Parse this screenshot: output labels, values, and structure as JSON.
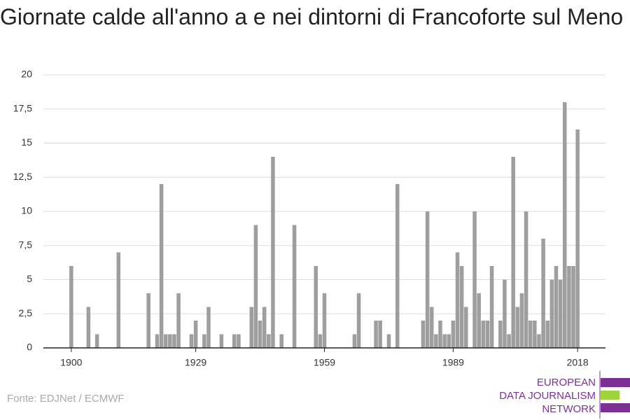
{
  "chart_data": {
    "type": "bar",
    "title": "Giornate calde all'anno a e nei dintorni di Francoforte sul Meno",
    "source": "Fonte: EDJNet / ECMWF",
    "logo": [
      "EUROPEAN",
      "DATA JOURNALISM",
      "NETWORK"
    ],
    "color": "#9e9e9e",
    "x": [
      1900,
      1901,
      1902,
      1903,
      1904,
      1905,
      1906,
      1907,
      1908,
      1909,
      1910,
      1911,
      1912,
      1913,
      1914,
      1915,
      1916,
      1917,
      1918,
      1919,
      1920,
      1921,
      1922,
      1923,
      1924,
      1925,
      1926,
      1927,
      1928,
      1929,
      1930,
      1931,
      1932,
      1933,
      1934,
      1935,
      1936,
      1937,
      1938,
      1939,
      1940,
      1941,
      1942,
      1943,
      1944,
      1945,
      1946,
      1947,
      1948,
      1949,
      1950,
      1951,
      1952,
      1953,
      1954,
      1955,
      1956,
      1957,
      1958,
      1959,
      1960,
      1961,
      1962,
      1963,
      1964,
      1965,
      1966,
      1967,
      1968,
      1969,
      1970,
      1971,
      1972,
      1973,
      1974,
      1975,
      1976,
      1977,
      1978,
      1979,
      1980,
      1981,
      1982,
      1983,
      1984,
      1985,
      1986,
      1987,
      1988,
      1989,
      1990,
      1991,
      1992,
      1993,
      1994,
      1995,
      1996,
      1997,
      1998,
      1999,
      2000,
      2001,
      2002,
      2003,
      2004,
      2005,
      2006,
      2007,
      2008,
      2009,
      2010,
      2011,
      2012,
      2013,
      2014,
      2015,
      2016,
      2017,
      2018
    ],
    "values": [
      6,
      0,
      0,
      0,
      3,
      0,
      1,
      0,
      0,
      0,
      0,
      7,
      0,
      0,
      0,
      0,
      0,
      0,
      4,
      0,
      1,
      12,
      1,
      1,
      1,
      4,
      0,
      0,
      1,
      2,
      0,
      1,
      3,
      0,
      0,
      1,
      0,
      0,
      1,
      1,
      0,
      0,
      3,
      9,
      2,
      3,
      1,
      14,
      0,
      1,
      0,
      0,
      9,
      0,
      0,
      0,
      0,
      6,
      1,
      4,
      0,
      0,
      0,
      0,
      0,
      0,
      1,
      4,
      0,
      0,
      0,
      2,
      2,
      0,
      1,
      0,
      12,
      0,
      0,
      0,
      0,
      0,
      2,
      10,
      3,
      1,
      2,
      1,
      1,
      2,
      7,
      6,
      3,
      0,
      10,
      4,
      2,
      2,
      6,
      0,
      2,
      5,
      1,
      14,
      3,
      4,
      10,
      2,
      2,
      1,
      8,
      2,
      5,
      6,
      5,
      18,
      6,
      6,
      16
    ],
    "xlim": [
      1893.5,
      2024.5
    ],
    "xticks": [
      1900,
      1929,
      1959,
      1989,
      2018
    ],
    "ylim": [
      0,
      20
    ],
    "yticks": [
      0,
      {
        "value": 2.5,
        "label": "2,5"
      },
      5,
      {
        "value": 7.5,
        "label": "7,5"
      },
      10,
      {
        "value": 12.5,
        "label": "12,5"
      },
      15,
      {
        "value": 17.5,
        "label": "17,5"
      },
      20
    ],
    "grid": true
  }
}
